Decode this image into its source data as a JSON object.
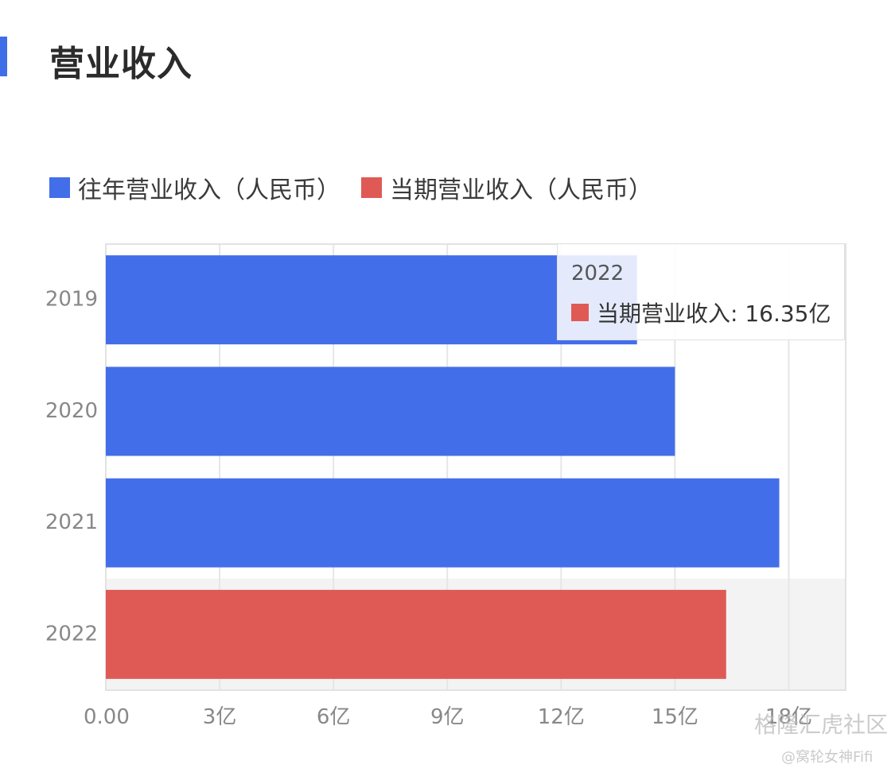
{
  "page": {
    "title": "营业收入"
  },
  "legend": [
    {
      "label": "往年营业收入（人民币）",
      "color": "#436eea"
    },
    {
      "label": "当期营业收入（人民币）",
      "color": "#e05a55"
    }
  ],
  "chart_data": {
    "type": "bar",
    "orientation": "horizontal",
    "categories": [
      "2019",
      "2020",
      "2021",
      "2022"
    ],
    "series": [
      {
        "name": "往年营业收入（人民币）",
        "values": [
          14.0,
          15.0,
          17.75,
          null
        ],
        "color": "#436eea"
      },
      {
        "name": "当期营业收入（人民币）",
        "values": [
          null,
          null,
          null,
          16.35
        ],
        "color": "#e05a55"
      }
    ],
    "xlim": [
      0,
      19.5
    ],
    "x_ticks": [
      0,
      3,
      6,
      9,
      12,
      15,
      18
    ],
    "x_tick_labels": [
      "0.00",
      "3亿",
      "6亿",
      "9亿",
      "12亿",
      "15亿",
      "18亿"
    ],
    "grid": true,
    "highlighted_category": "2022",
    "legend_position": "top-left"
  },
  "tooltip": {
    "title": "2022",
    "series_label": "当期营业收入",
    "value": "16.35亿",
    "text": "当期营业收入: 16.35亿",
    "color": "#e05a55"
  },
  "watermark": {
    "brand": "格隆汇虎社区",
    "author": "@窝轮女神Fifi"
  }
}
